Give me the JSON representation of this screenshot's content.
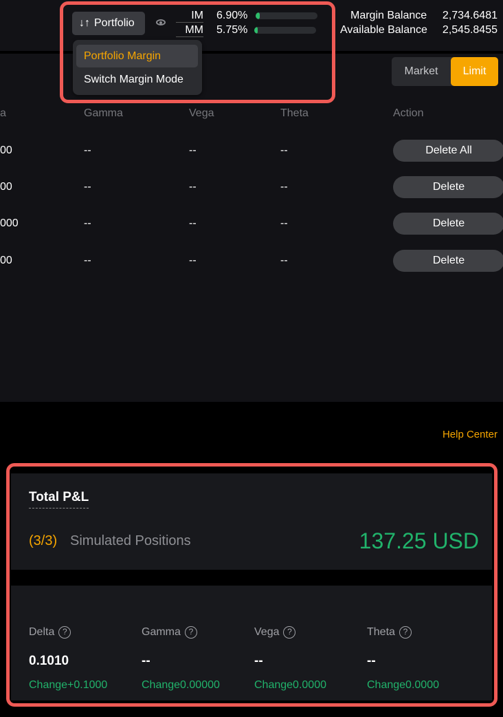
{
  "header": {
    "portfolio_label": "Portfolio",
    "im_label": "IM",
    "im_pct": "6.90%",
    "im_fill": 6.9,
    "mm_label": "MM",
    "mm_pct": "5.75%",
    "mm_fill": 5.75,
    "margin_balance_label": "Margin Balance",
    "margin_balance": "2,734.6481",
    "available_balance_label": "Available Balance",
    "available_balance": "2,545.8455"
  },
  "menu": {
    "items": [
      {
        "label": "Portfolio Margin",
        "active": true
      },
      {
        "label": "Switch Margin Mode"
      }
    ]
  },
  "order_type": {
    "market": "Market",
    "limit": "Limit",
    "selected": "Limit"
  },
  "table": {
    "headers": [
      "a",
      "Gamma",
      "Vega",
      "Theta",
      "Action"
    ],
    "rows": [
      {
        "delta": "00",
        "gamma": "--",
        "vega": "--",
        "theta": "--",
        "action": "Delete All"
      },
      {
        "delta": "00",
        "gamma": "--",
        "vega": "--",
        "theta": "--",
        "action": "Delete"
      },
      {
        "delta": "000",
        "gamma": "--",
        "vega": "--",
        "theta": "--",
        "action": "Delete"
      },
      {
        "delta": "00",
        "gamma": "--",
        "vega": "--",
        "theta": "--",
        "action": "Delete"
      }
    ]
  },
  "help_center": "Help Center",
  "pnl": {
    "title": "Total P&L",
    "count": "(3/3)",
    "positions_label": "Simulated Positions",
    "value": "137.25 USD",
    "greeks": [
      {
        "label": "Delta",
        "value": "0.1010",
        "change": "Change+0.1000"
      },
      {
        "label": "Gamma",
        "value": "--",
        "change": "Change0.00000"
      },
      {
        "label": "Vega",
        "value": "--",
        "change": "Change0.0000"
      },
      {
        "label": "Theta",
        "value": "--",
        "change": "Change0.0000"
      }
    ]
  },
  "colors": {
    "accent": "#f7a600",
    "positive": "#21b36b",
    "highlight": "#ef5a55"
  }
}
